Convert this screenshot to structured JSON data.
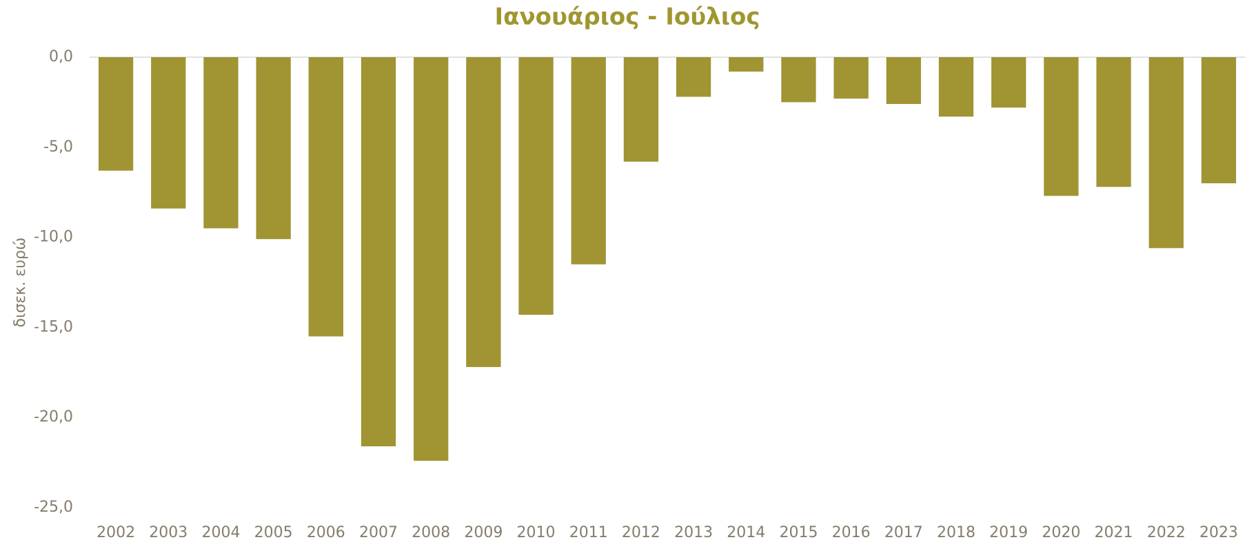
{
  "chart_data": {
    "type": "bar",
    "title": "Ιανουάριος - Ιούλιος",
    "y_label": "δισεκ. ευρώ",
    "categories": [
      "2002",
      "2003",
      "2004",
      "2005",
      "2006",
      "2007",
      "2008",
      "2009",
      "2010",
      "2011",
      "2012",
      "2013",
      "2014",
      "2015",
      "2016",
      "2017",
      "2018",
      "2019",
      "2020",
      "2021",
      "2022",
      "2023"
    ],
    "values": [
      -6.3,
      -8.4,
      -9.5,
      -10.1,
      -15.5,
      -21.6,
      -22.4,
      -17.2,
      -14.3,
      -11.5,
      -5.8,
      -2.2,
      -0.8,
      -2.5,
      -2.3,
      -2.6,
      -3.3,
      -2.8,
      -7.7,
      -7.2,
      -10.6,
      -7.0
    ],
    "color": "#a09433",
    "ylim": [
      -25,
      0
    ],
    "yticks": [
      {
        "value": 0,
        "label": "0,0"
      },
      {
        "value": -5,
        "label": "-5,0"
      },
      {
        "value": -10,
        "label": "-10,0"
      },
      {
        "value": -15,
        "label": "-15,0"
      },
      {
        "value": -20,
        "label": "-20,0"
      },
      {
        "value": -25,
        "label": "-25,0"
      }
    ],
    "grid": false
  }
}
